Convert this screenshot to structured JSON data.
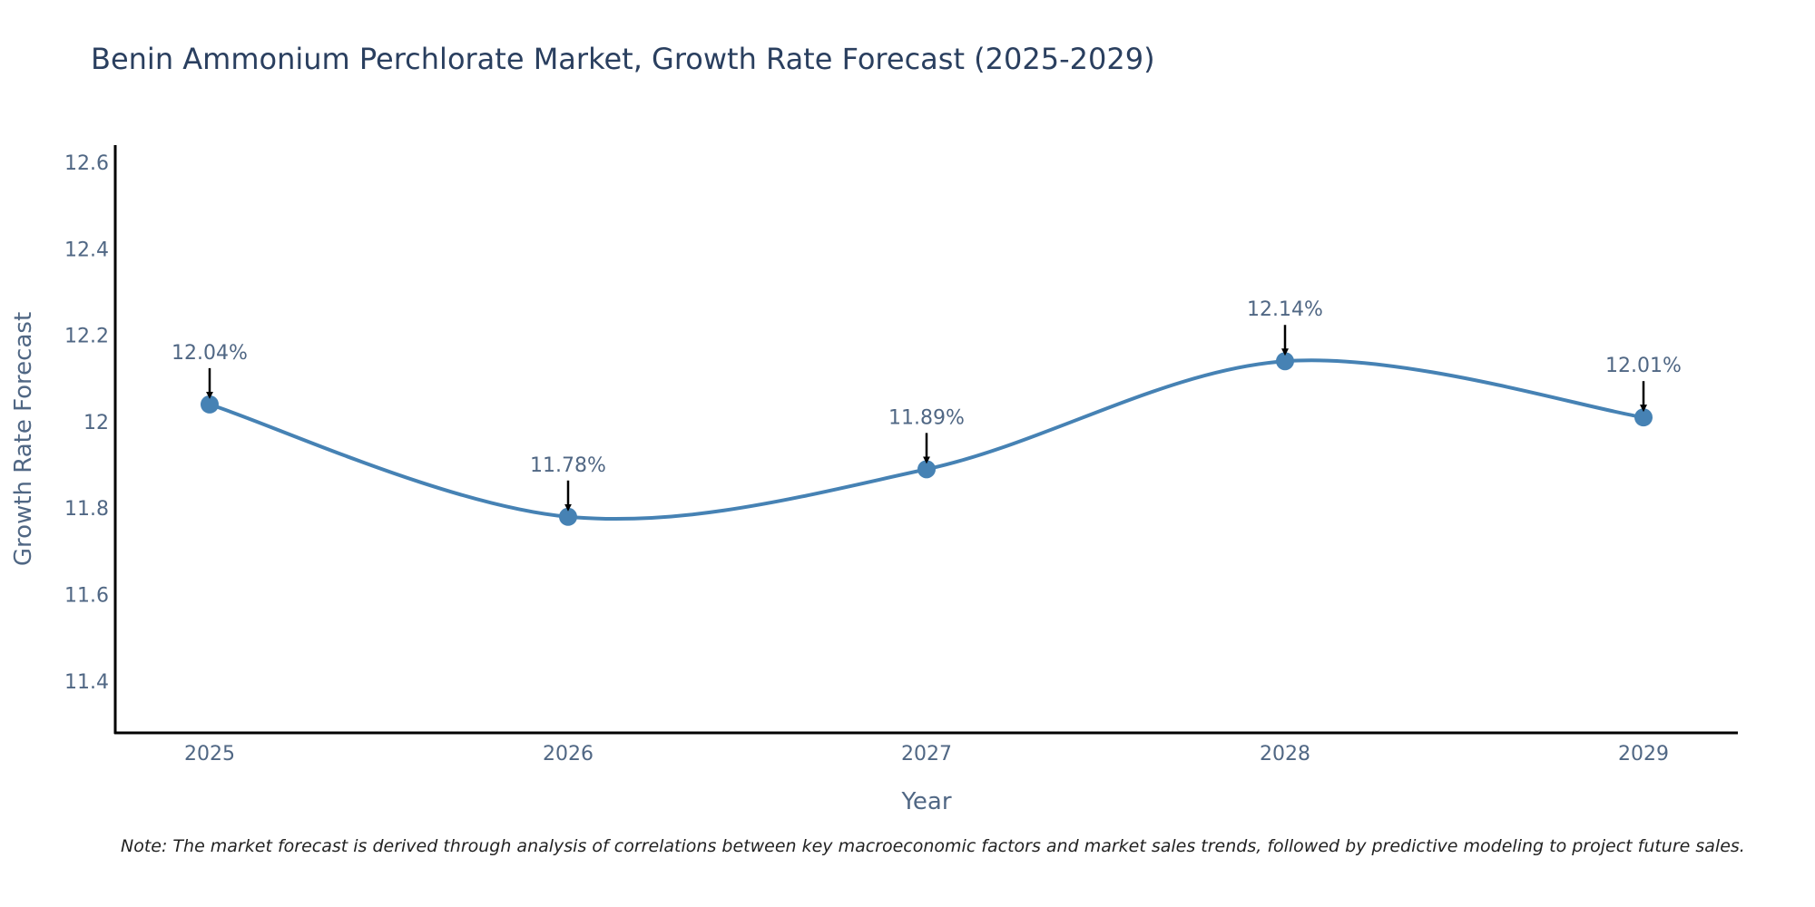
{
  "chart_data": {
    "type": "line",
    "title": "Benin Ammonium Perchlorate Market, Growth Rate Forecast (2025-2029)",
    "xlabel": "Year",
    "ylabel": "Growth Rate Forecast",
    "categories": [
      "2025",
      "2026",
      "2027",
      "2028",
      "2029"
    ],
    "series": [
      {
        "name": "Growth Rate Forecast",
        "values": [
          12.04,
          11.78,
          11.89,
          12.14,
          12.01
        ]
      }
    ],
    "annotations": [
      "12.04%",
      "11.78%",
      "11.89%",
      "12.14%",
      "12.01%"
    ],
    "y_ticks": [
      11.4,
      11.6,
      11.8,
      12,
      12.2,
      12.4,
      12.6
    ],
    "y_tick_labels": [
      "11.4",
      "11.6",
      "11.8",
      "12",
      "12.2",
      "12.4",
      "12.6"
    ],
    "ylim": [
      11.28,
      12.64
    ],
    "grid": false,
    "legend": "none",
    "note": "Note: The market forecast is derived through analysis of correlations between key macroeconomic factors and market sales trends, followed by predictive modeling to project future sales.",
    "colors": {
      "line": "#4682b4",
      "marker": "#4682b4",
      "arrow": "#000000",
      "axis": "#000000",
      "text": "#506784",
      "title": "#2a3f5f"
    }
  }
}
